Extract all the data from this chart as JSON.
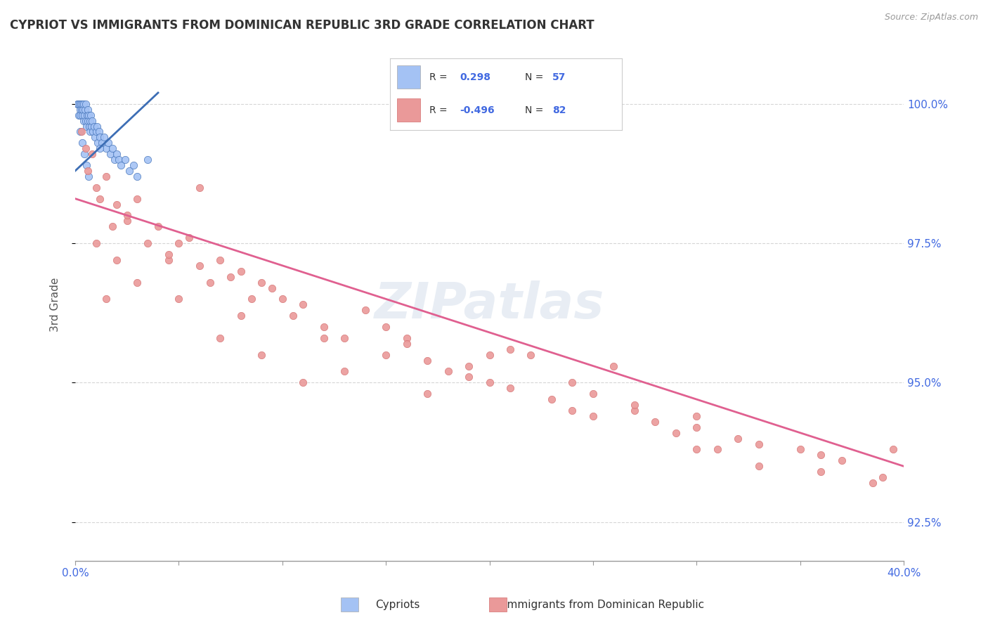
{
  "title": "CYPRIOT VS IMMIGRANTS FROM DOMINICAN REPUBLIC 3RD GRADE CORRELATION CHART",
  "source_text": "Source: ZipAtlas.com",
  "ylabel": "3rd Grade",
  "xlim": [
    0.0,
    40.0
  ],
  "ylim": [
    91.8,
    101.0
  ],
  "yticks": [
    92.5,
    95.0,
    97.5,
    100.0
  ],
  "ytick_labels": [
    "92.5%",
    "95.0%",
    "97.5%",
    "100.0%"
  ],
  "xticks": [
    0.0,
    5.0,
    10.0,
    15.0,
    20.0,
    25.0,
    30.0,
    35.0,
    40.0
  ],
  "xtick_labels": [
    "0.0%",
    "",
    "",
    "",
    "",
    "",
    "",
    "",
    "40.0%"
  ],
  "blue_color": "#a4c2f4",
  "pink_color": "#ea9999",
  "blue_line_color": "#3d6eb5",
  "pink_line_color": "#e06090",
  "legend_R_blue": "0.298",
  "legend_N_blue": "57",
  "legend_R_pink": "-0.496",
  "legend_N_pink": "82",
  "watermark": "ZIPatlas",
  "blue_scatter_x": [
    0.1,
    0.15,
    0.18,
    0.2,
    0.22,
    0.25,
    0.28,
    0.3,
    0.32,
    0.35,
    0.38,
    0.4,
    0.42,
    0.45,
    0.48,
    0.5,
    0.52,
    0.55,
    0.58,
    0.6,
    0.62,
    0.65,
    0.68,
    0.7,
    0.72,
    0.75,
    0.78,
    0.8,
    0.85,
    0.9,
    0.95,
    1.0,
    1.05,
    1.1,
    1.15,
    1.2,
    1.3,
    1.4,
    1.5,
    1.6,
    1.7,
    1.8,
    1.9,
    2.0,
    2.1,
    2.2,
    2.4,
    2.6,
    2.8,
    3.0,
    0.25,
    0.35,
    0.45,
    0.55,
    0.65,
    3.5,
    1.2
  ],
  "blue_scatter_y": [
    100.0,
    100.0,
    99.8,
    100.0,
    99.9,
    99.8,
    100.0,
    99.9,
    100.0,
    99.8,
    99.9,
    100.0,
    99.7,
    99.8,
    99.9,
    100.0,
    99.7,
    99.6,
    99.8,
    99.9,
    99.7,
    99.8,
    99.6,
    99.7,
    99.5,
    99.8,
    99.6,
    99.7,
    99.5,
    99.6,
    99.4,
    99.5,
    99.6,
    99.3,
    99.5,
    99.4,
    99.3,
    99.4,
    99.2,
    99.3,
    99.1,
    99.2,
    99.0,
    99.1,
    99.0,
    98.9,
    99.0,
    98.8,
    98.9,
    98.7,
    99.5,
    99.3,
    99.1,
    98.9,
    98.7,
    99.0,
    99.2
  ],
  "pink_scatter_x": [
    0.3,
    0.5,
    0.6,
    0.8,
    1.0,
    1.2,
    1.5,
    1.8,
    2.0,
    2.5,
    3.0,
    3.5,
    4.0,
    4.5,
    5.0,
    5.5,
    6.0,
    6.5,
    7.0,
    7.5,
    8.0,
    8.5,
    9.0,
    9.5,
    10.0,
    10.5,
    11.0,
    12.0,
    13.0,
    14.0,
    15.0,
    16.0,
    17.0,
    18.0,
    19.0,
    20.0,
    21.0,
    22.0,
    23.0,
    24.0,
    25.0,
    26.0,
    27.0,
    28.0,
    29.0,
    30.0,
    31.0,
    32.0,
    33.0,
    35.0,
    37.0,
    38.5,
    1.0,
    2.0,
    3.0,
    5.0,
    7.0,
    9.0,
    11.0,
    13.0,
    15.0,
    17.0,
    19.0,
    21.0,
    24.0,
    27.0,
    30.0,
    33.0,
    36.0,
    39.0,
    2.5,
    4.5,
    8.0,
    12.0,
    16.0,
    20.0,
    25.0,
    30.0,
    36.0,
    39.5,
    1.5,
    6.0
  ],
  "pink_scatter_y": [
    99.5,
    99.2,
    98.8,
    99.1,
    98.5,
    98.3,
    98.7,
    97.8,
    98.2,
    97.9,
    98.3,
    97.5,
    97.8,
    97.2,
    97.5,
    97.6,
    97.1,
    96.8,
    97.2,
    96.9,
    97.0,
    96.5,
    96.8,
    96.7,
    96.5,
    96.2,
    96.4,
    96.0,
    95.8,
    96.3,
    95.5,
    95.8,
    95.4,
    95.2,
    95.3,
    95.0,
    94.9,
    95.5,
    94.7,
    95.0,
    94.8,
    95.3,
    94.5,
    94.3,
    94.1,
    94.4,
    93.8,
    94.0,
    93.5,
    93.8,
    93.6,
    93.2,
    97.5,
    97.2,
    96.8,
    96.5,
    95.8,
    95.5,
    95.0,
    95.2,
    96.0,
    94.8,
    95.1,
    95.6,
    94.5,
    94.6,
    94.2,
    93.9,
    93.4,
    93.3,
    98.0,
    97.3,
    96.2,
    95.8,
    95.7,
    95.5,
    94.4,
    93.8,
    93.7,
    93.8,
    96.5,
    98.5
  ]
}
